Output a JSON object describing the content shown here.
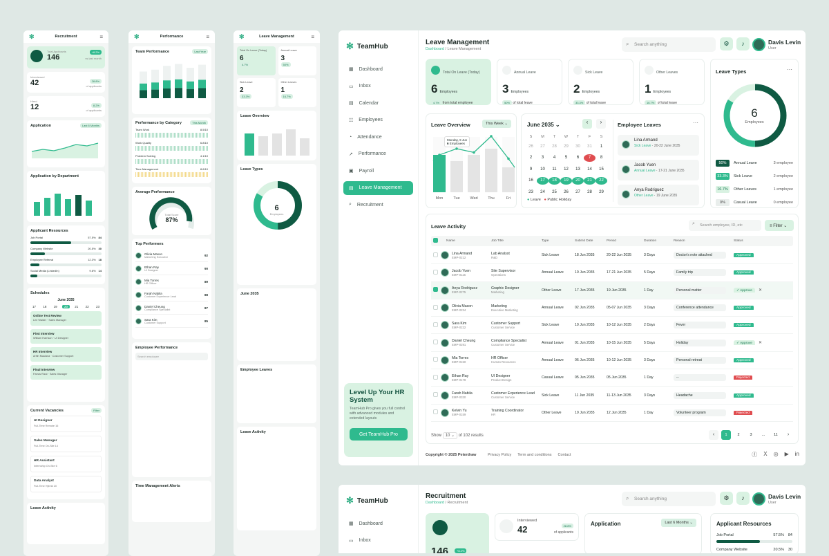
{
  "m1": {
    "title": "Recruitment",
    "total_label": "Total Applicants",
    "total": "146",
    "total_badge": "+8.2%",
    "total_sub": "vs last month",
    "interviewed_label": "Interviewed",
    "interviewed": "42",
    "interviewed_badge": "28.8%",
    "interviewed_sub": "of applicants",
    "hired_label": "Hired",
    "hired": "12",
    "hired_badge": "8.2%",
    "hired_sub": "of applicants",
    "application": "Application",
    "period": "Last 6 Months",
    "by_dept": "Application by Department",
    "resources": "Applicant Resources",
    "res": [
      {
        "name": "Job Portal",
        "v": "57.5%",
        "n": "84",
        "p": 57.5
      },
      {
        "name": "Company Website",
        "v": "20.5%",
        "n": "30",
        "p": 20.5
      },
      {
        "name": "Employee Referral",
        "v": "12.3%",
        "n": "18",
        "p": 12.3
      },
      {
        "name": "Social Media (LinkedIn)",
        "v": "9.6%",
        "n": "14",
        "p": 9.6
      }
    ],
    "schedules": "Schedules",
    "month": "June 2035",
    "days": [
      "17",
      "18",
      "19",
      "20",
      "21",
      "22",
      "23"
    ],
    "events": [
      {
        "t": "Online Test Review",
        "s": "Lee Walker · Sales Manager"
      },
      {
        "t": "First Interview",
        "s": "William Harrison · UI Designer"
      },
      {
        "t": "HR Interview",
        "s": "Arifin Maulana · Customer Support"
      },
      {
        "t": "Final Interview",
        "s": "Farras Rizal · Sales Manager"
      }
    ],
    "vacancies": "Current Vacancies",
    "filter": "Filter",
    "vac": [
      {
        "t": "UI Designer",
        "m": "Full-Time   Remote   16"
      },
      {
        "t": "Sales Manager",
        "m": "Full-Time   On-Site   14"
      },
      {
        "t": "HR Assistant",
        "m": "Internship   On-Site   6"
      },
      {
        "t": "Data Analyst",
        "m": "Full-Time   Hybrid   20"
      }
    ],
    "leave_activity": "Leave Activity"
  },
  "m2": {
    "title": "Performance",
    "team": "Team Performance",
    "last_year": "Last Year",
    "perf_cat": "Performance by Category",
    "this_month": "This Month",
    "cats": [
      {
        "n": "Team Work",
        "v": "8.5/10"
      },
      {
        "n": "Work Quality",
        "v": "6.8/10"
      },
      {
        "n": "Problem Solving",
        "v": "4.1/10"
      },
      {
        "n": "Time Management",
        "v": "8.6/10"
      }
    ],
    "avg": "Average Performance",
    "score_label": "Total Score",
    "score": "87%",
    "score_badge": "4.7%",
    "top": "Top Performers",
    "people": [
      {
        "n": "Olivia Mason",
        "r": "Marketing Executive",
        "s": "92"
      },
      {
        "n": "Ethan Ray",
        "r": "UI Designer",
        "s": "90"
      },
      {
        "n": "Mia Torres",
        "r": "HR Officer",
        "s": "89"
      },
      {
        "n": "Farah Nabila",
        "r": "Customer Experience Lead",
        "s": "88"
      },
      {
        "n": "Daniel Cheung",
        "r": "Compliance Specialist",
        "s": "87"
      },
      {
        "n": "Sara Kim",
        "r": "Customer Support",
        "s": "85"
      }
    ],
    "emp_perf": "Employee Performance",
    "search": "Search employee",
    "alerts": "Time Management Alerts"
  },
  "m3": {
    "title": "Leave Management",
    "overview": "Leave Overview",
    "types": "Leave Types",
    "six": "6",
    "employees": "Employees",
    "emp_leaves": "Employee Leaves",
    "leave_activity": "Leave Activity"
  },
  "brand": "TeamHub",
  "nav": [
    "Dashboard",
    "Inbox",
    "Calendar",
    "Employees",
    "Attendance",
    "Performance",
    "Payroll",
    "Leave Management",
    "Recruitment"
  ],
  "promo": {
    "title": "Level Up Your HR System",
    "text": "TeamHub Pro gives you full control with advanced modules and extended layouts",
    "button": "Get TeamHub Pro"
  },
  "header": {
    "title": "Leave Management",
    "crumb1": "Dashboard",
    "crumb2": "Leave Management",
    "search": "Search anything",
    "user": "Davis Levin",
    "role": "User"
  },
  "stats": [
    {
      "label": "Total On Leave (Today)",
      "n": "6",
      "u": "Employees",
      "badge": "4.7%",
      "sub": "from total employee"
    },
    {
      "label": "Annual Leave",
      "n": "3",
      "u": "Employees",
      "badge": "50%",
      "sub": "of total leave"
    },
    {
      "label": "Sick Leave",
      "n": "2",
      "u": "Employees",
      "badge": "33.3%",
      "sub": "of total leave"
    },
    {
      "label": "Other Leaves",
      "n": "1",
      "u": "Employees",
      "badge": "16.7%",
      "sub": "of total leave"
    }
  ],
  "leave_types": {
    "title": "Leave Types",
    "total": "6",
    "unit": "Employees",
    "rows": [
      {
        "p": "50%",
        "n": "Annual Leave",
        "c": "3 employee"
      },
      {
        "p": "33.3%",
        "n": "Sick Leave",
        "c": "2 employee"
      },
      {
        "p": "16.7%",
        "n": "Other Leaves",
        "c": "1 employee"
      },
      {
        "p": "0%",
        "n": "Casual Leave",
        "c": "0 employee"
      }
    ]
  },
  "overview": {
    "title": "Leave Overview",
    "period": "This Week",
    "tip_date": "Monday, 9 Jun",
    "tip_n": "6",
    "tip_u": "Employees",
    "days": [
      "Mon",
      "Tue",
      "Wed",
      "Thu",
      "Fri"
    ],
    "leave": [
      6,
      5,
      6,
      7,
      4
    ],
    "holiday": [
      0,
      0,
      0,
      0,
      0
    ],
    "line": [
      6,
      7,
      6.4,
      9,
      5.4
    ]
  },
  "cal": {
    "month": "June 2035",
    "dow": [
      "S",
      "M",
      "T",
      "W",
      "T",
      "F",
      "S"
    ],
    "rows": [
      [
        "26",
        "27",
        "28",
        "29",
        "30",
        "31",
        "1"
      ],
      [
        "2",
        "3",
        "4",
        "5",
        "6",
        "7",
        "8"
      ],
      [
        "9",
        "10",
        "11",
        "12",
        "13",
        "14",
        "15"
      ],
      [
        "16",
        "17",
        "18",
        "19",
        "20",
        "21",
        "22"
      ],
      [
        "23",
        "24",
        "25",
        "26",
        "27",
        "28",
        "29"
      ]
    ],
    "leg1": "Leave",
    "leg2": "Public Holiday"
  },
  "emp_leaves": {
    "title": "Employee Leaves",
    "items": [
      {
        "n": "Lina Armand",
        "t": "Sick Leave",
        "d": "20-22 June 2035"
      },
      {
        "n": "Jacob Yuen",
        "t": "Annual Leave",
        "d": "17-21 June 2035"
      },
      {
        "n": "Anya Rodriguez",
        "t": "Other Leave",
        "d": "19 June 2035"
      }
    ]
  },
  "activity": {
    "title": "Leave Activity",
    "search": "Search employee, ID, etc",
    "filter": "Filter",
    "cols": [
      "Name",
      "Job Title",
      "Type",
      "Submit Date",
      "Period",
      "Duration",
      "Reason",
      "Status"
    ],
    "rows": [
      {
        "n": "Lina Armand",
        "id": "EMP-0212",
        "j": "Lab Analyst",
        "d": "R&D",
        "t": "Sick Leave",
        "s": "18 Jun 2035",
        "p": "20-22 Jun 2035",
        "du": "3 Days",
        "r": "Doctor's note attached",
        "st": "Approved"
      },
      {
        "n": "Jacob Yuen",
        "id": "EMP-0115",
        "j": "Site Supervisor",
        "d": "Operations",
        "t": "Annual Leave",
        "s": "10 Jun 2035",
        "p": "17-21 Jun 2035",
        "du": "5 Days",
        "r": "Family trip",
        "st": "Approved"
      },
      {
        "n": "Anya Rodriguez",
        "id": "EMP-0275",
        "j": "Graphic Designer",
        "d": "Marketing",
        "t": "Other Leave",
        "s": "17 Jun 2035",
        "p": "19 Jun 2035",
        "du": "1 Day",
        "r": "Personal matter",
        "st": "Approve"
      },
      {
        "n": "Olivia Mason",
        "id": "EMP-0234",
        "j": "Marketing",
        "d": "Executive Marketing",
        "t": "Annual Leave",
        "s": "02 Jun 2035",
        "p": "05-07 Jun 2035",
        "du": "3 Days",
        "r": "Conference attendance",
        "st": "Approved"
      },
      {
        "n": "Sara Kim",
        "id": "EMP-0222",
        "j": "Customer Support",
        "d": "Customer Service",
        "t": "Sick Leave",
        "s": "10 Jun 2035",
        "p": "10-12 Jun 2035",
        "du": "2 Days",
        "r": "Fever",
        "st": "Approved"
      },
      {
        "n": "Daniel Cheung",
        "id": "EMP-0291",
        "j": "Compliance Specialist",
        "d": "Customer Service",
        "t": "Annual Leave",
        "s": "01 Jun 2035",
        "p": "10-15 Jun 2035",
        "du": "5 Days",
        "r": "Holiday",
        "st": "Approve"
      },
      {
        "n": "Mia Torres",
        "id": "EMP-0150",
        "j": "HR Officer",
        "d": "Human Resources",
        "t": "Annual Leave",
        "s": "06 Jun 2035",
        "p": "10-12 Jun 2035",
        "du": "3 Days",
        "r": "Personal retreat",
        "st": "Approved"
      },
      {
        "n": "Ethan Ray",
        "id": "EMP-0178",
        "j": "UI Designer",
        "d": "Product Design",
        "t": "Casual Leave",
        "s": "05 Jun 2035",
        "p": "05 Jun 2035",
        "du": "1 Day",
        "r": "--",
        "st": "Rejected"
      },
      {
        "n": "Farah Nabila",
        "id": "EMP-0330",
        "j": "Customer Experience Lead",
        "d": "Customer Service",
        "t": "Sick Leave",
        "s": "11 Jun 2035",
        "p": "11-13 Jun 2035",
        "du": "3 Days",
        "r": "Headache",
        "st": "Approved"
      },
      {
        "n": "Kelvin Yu",
        "id": "EMP-0159",
        "j": "Training Coordinator",
        "d": "HR",
        "t": "Other Leave",
        "s": "10 Jun 2035",
        "p": "12 Jun 2035",
        "du": "1 Day",
        "r": "Volunteer program",
        "st": "Rejected"
      }
    ],
    "show": "Show",
    "per": "10",
    "of": "of 102 results",
    "pages": [
      "1",
      "2",
      "3",
      "...",
      "11"
    ]
  },
  "footer": {
    "copy": "Copyright © 2025 Peterdraw",
    "links": [
      "Privacy Policy",
      "Term and conditions",
      "Contact"
    ]
  },
  "d2": {
    "title": "Recruitment",
    "crumb1": "Dashboard",
    "crumb2": "Recruitment",
    "interviewed": "Interviewed",
    "n": "42",
    "badge": "28.8%",
    "sub": "of applicants",
    "total": "146",
    "tbadge": "+8.2%",
    "application": "Application",
    "period": "Last 6 Months",
    "resources": "Applicant Resources",
    "jp": "Job Portal",
    "jpv": "57.5%",
    "jpn": "84",
    "cw": "Company Website",
    "cwv": "20.5%",
    "cwn": "30"
  },
  "colors": {
    "primary": "#2fba8e",
    "dark": "#0f5a43",
    "light": "#d9f2e2",
    "red": "#e04d50"
  }
}
